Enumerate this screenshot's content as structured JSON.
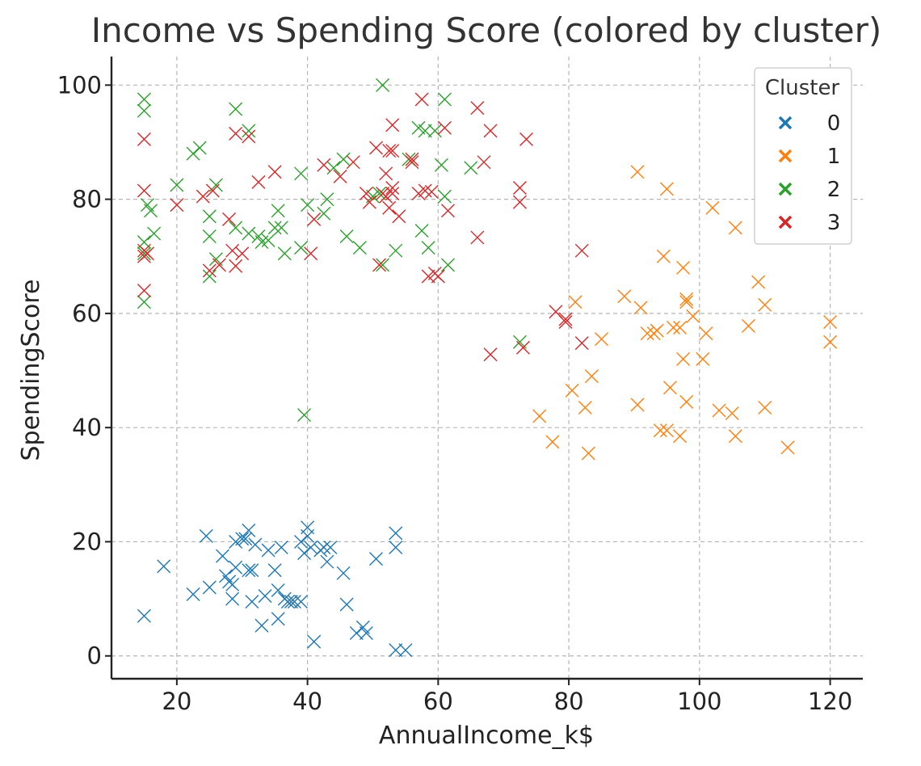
{
  "chart_data": {
    "type": "scatter",
    "title": "Income vs Spending Score (colored by cluster)",
    "xlabel": "AnnualIncome_k$",
    "ylabel": "SpendingScore",
    "xlim": [
      10,
      125
    ],
    "ylim": [
      -4,
      105
    ],
    "xticks": [
      20,
      40,
      60,
      80,
      100,
      120
    ],
    "yticks": [
      0,
      20,
      40,
      60,
      80,
      100
    ],
    "grid": true,
    "marker": "x",
    "legend": {
      "title": "Cluster",
      "placement": "top-right"
    },
    "series": [
      {
        "name": "0",
        "color": "#1f77b4",
        "points": [
          [
            15,
            7
          ],
          [
            18,
            15.7
          ],
          [
            22.5,
            10.8
          ],
          [
            24.5,
            21
          ],
          [
            25,
            12
          ],
          [
            27,
            17.5
          ],
          [
            27.5,
            14
          ],
          [
            28,
            13
          ],
          [
            28.5,
            10
          ],
          [
            28.5,
            12.5
          ],
          [
            29,
            15.5
          ],
          [
            29,
            20
          ],
          [
            30,
            20.5
          ],
          [
            30.5,
            20.5
          ],
          [
            31,
            15
          ],
          [
            31.5,
            9.5
          ],
          [
            31.5,
            15
          ],
          [
            31,
            22
          ],
          [
            32,
            19.5
          ],
          [
            33,
            5.3
          ],
          [
            33.5,
            10.5
          ],
          [
            34,
            18.5
          ],
          [
            35,
            15
          ],
          [
            35.5,
            11.5
          ],
          [
            35.5,
            6.5
          ],
          [
            36,
            19
          ],
          [
            36.5,
            10
          ],
          [
            37,
            9.5
          ],
          [
            37.5,
            9.5
          ],
          [
            38,
            9.5
          ],
          [
            39,
            9.5
          ],
          [
            39,
            20
          ],
          [
            39.5,
            18
          ],
          [
            40,
            22.5
          ],
          [
            40,
            21
          ],
          [
            40.5,
            19
          ],
          [
            41,
            2.5
          ],
          [
            42,
            18.5
          ],
          [
            42.5,
            19
          ],
          [
            43,
            16.5
          ],
          [
            43.5,
            19
          ],
          [
            45.5,
            14.5
          ],
          [
            46,
            9
          ],
          [
            47.5,
            4
          ],
          [
            48.5,
            5
          ],
          [
            49,
            4
          ],
          [
            50.5,
            17
          ],
          [
            53.5,
            21.5
          ],
          [
            53.5,
            1
          ],
          [
            53.5,
            19
          ],
          [
            55,
            1
          ]
        ]
      },
      {
        "name": "1",
        "color": "#ff7f0e",
        "points": [
          [
            75.5,
            42
          ],
          [
            77.5,
            37.5
          ],
          [
            80.5,
            46.5
          ],
          [
            81,
            62
          ],
          [
            82.5,
            43.5
          ],
          [
            83,
            35.5
          ],
          [
            83.5,
            49
          ],
          [
            85,
            55.5
          ],
          [
            88.5,
            63
          ],
          [
            90.5,
            84.8
          ],
          [
            90.5,
            44
          ],
          [
            91,
            61
          ],
          [
            92,
            56.5
          ],
          [
            93,
            56.5
          ],
          [
            93.5,
            57
          ],
          [
            94,
            39.5
          ],
          [
            94.5,
            70
          ],
          [
            95,
            39.5
          ],
          [
            95,
            81.8
          ],
          [
            95.5,
            47
          ],
          [
            96,
            57.5
          ],
          [
            97,
            38.5
          ],
          [
            97,
            57.5
          ],
          [
            97.5,
            68
          ],
          [
            97.5,
            52
          ],
          [
            98,
            62.5
          ],
          [
            98,
            44.5
          ],
          [
            98,
            62
          ],
          [
            99,
            59.5
          ],
          [
            100.5,
            52
          ],
          [
            101,
            56.5
          ],
          [
            102,
            78.5
          ],
          [
            103,
            43
          ],
          [
            105,
            42.5
          ],
          [
            105.5,
            75
          ],
          [
            105.5,
            38.5
          ],
          [
            107.5,
            57.8
          ],
          [
            109,
            65.5
          ],
          [
            110,
            61.5
          ],
          [
            110,
            43.5
          ],
          [
            113.5,
            36.5
          ],
          [
            120,
            58.5
          ],
          [
            120,
            55
          ]
        ]
      },
      {
        "name": "2",
        "color": "#2ca02c",
        "points": [
          [
            15,
            97.5
          ],
          [
            15,
            95.5
          ],
          [
            15,
            62
          ],
          [
            15,
            72.5
          ],
          [
            15,
            70.5
          ],
          [
            15.5,
            79
          ],
          [
            16,
            78
          ],
          [
            16.5,
            74
          ],
          [
            20,
            82.5
          ],
          [
            22.5,
            88
          ],
          [
            23.5,
            89
          ],
          [
            25,
            73.5
          ],
          [
            25,
            66.5
          ],
          [
            25,
            77
          ],
          [
            26,
            69.5
          ],
          [
            26,
            82.5
          ],
          [
            29,
            95.8
          ],
          [
            29,
            75
          ],
          [
            31,
            92
          ],
          [
            31,
            74
          ],
          [
            32.5,
            73.5
          ],
          [
            33,
            72.5
          ],
          [
            34,
            72.8
          ],
          [
            35,
            75
          ],
          [
            35.5,
            78
          ],
          [
            36,
            75
          ],
          [
            36.5,
            70.5
          ],
          [
            39,
            84.5
          ],
          [
            39,
            71.5
          ],
          [
            39.5,
            42.2
          ],
          [
            40,
            79
          ],
          [
            42.5,
            77.5
          ],
          [
            43,
            80
          ],
          [
            44,
            85.5
          ],
          [
            45.5,
            87
          ],
          [
            46,
            73.5
          ],
          [
            48,
            71.5
          ],
          [
            50,
            80.5
          ],
          [
            51,
            81
          ],
          [
            51.5,
            100
          ],
          [
            51.5,
            68.5
          ],
          [
            53.5,
            71
          ],
          [
            55.5,
            87
          ],
          [
            57,
            92.5
          ],
          [
            57.5,
            74.5
          ],
          [
            58,
            92
          ],
          [
            58.5,
            71.5
          ],
          [
            59.5,
            92
          ],
          [
            60.5,
            86
          ],
          [
            61,
            80.5
          ],
          [
            61,
            97.5
          ],
          [
            61.5,
            68.5
          ],
          [
            65,
            85.5
          ],
          [
            72.5,
            55
          ]
        ]
      },
      {
        "name": "3",
        "color": "#d62728",
        "points": [
          [
            15,
            90.5
          ],
          [
            15,
            81.5
          ],
          [
            15,
            71
          ],
          [
            15,
            70
          ],
          [
            15,
            64
          ],
          [
            15.5,
            70.5
          ],
          [
            20,
            79
          ],
          [
            24,
            80.5
          ],
          [
            25,
            67.5
          ],
          [
            25.5,
            81.5
          ],
          [
            26.5,
            68.5
          ],
          [
            28,
            76.5
          ],
          [
            28.5,
            71
          ],
          [
            29,
            91.5
          ],
          [
            29,
            68.3
          ],
          [
            30,
            70.5
          ],
          [
            31,
            91
          ],
          [
            32.5,
            83
          ],
          [
            35,
            84.8
          ],
          [
            40.5,
            70.5
          ],
          [
            41,
            76.5
          ],
          [
            42.5,
            86
          ],
          [
            45,
            84
          ],
          [
            47,
            86.5
          ],
          [
            49,
            81
          ],
          [
            49.5,
            79.5
          ],
          [
            50.5,
            89
          ],
          [
            51,
            68.5
          ],
          [
            51.5,
            81
          ],
          [
            52,
            80.5
          ],
          [
            52,
            84.5
          ],
          [
            52.5,
            88.5
          ],
          [
            52.5,
            78.5
          ],
          [
            53,
            88.5
          ],
          [
            53,
            93
          ],
          [
            53,
            81
          ],
          [
            53,
            82
          ],
          [
            54,
            77
          ],
          [
            56,
            87
          ],
          [
            56,
            86.5
          ],
          [
            57,
            81
          ],
          [
            57.5,
            97.5
          ],
          [
            58,
            81.5
          ],
          [
            58.5,
            66.5
          ],
          [
            59,
            81.3
          ],
          [
            59.5,
            67
          ],
          [
            60,
            66.5
          ],
          [
            61,
            92.5
          ],
          [
            61.5,
            78
          ],
          [
            66,
            96
          ],
          [
            66,
            73.3
          ],
          [
            67,
            86.5
          ],
          [
            68,
            92
          ],
          [
            68,
            52.8
          ],
          [
            72.5,
            79.5
          ],
          [
            72.5,
            82
          ],
          [
            73,
            54
          ],
          [
            73.5,
            90.5
          ],
          [
            78,
            60.3
          ],
          [
            79.5,
            59
          ],
          [
            79.5,
            58.5
          ],
          [
            82,
            71
          ],
          [
            82,
            54.8
          ]
        ]
      }
    ]
  }
}
